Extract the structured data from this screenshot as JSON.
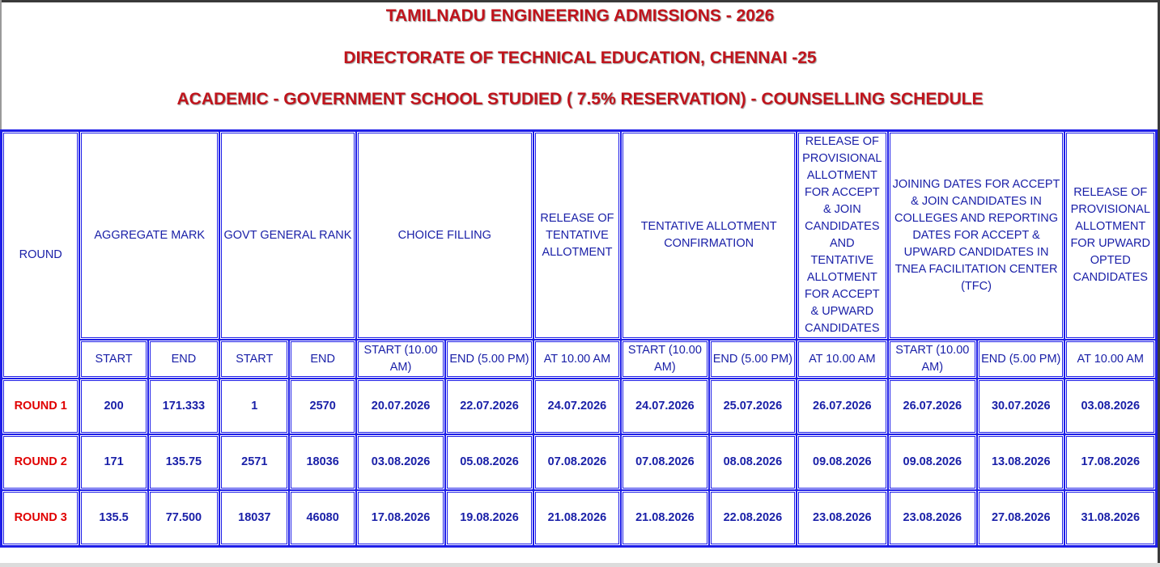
{
  "header": {
    "title_1": "TAMILNADU ENGINEERING ADMISSIONS - 2026",
    "title_2": "DIRECTORATE OF TECHNICAL EDUCATION, CHENNAI -25",
    "title_3": "ACADEMIC - GOVERNMENT SCHOOL STUDIED ( 7.5% RESERVATION) - COUNSELLING SCHEDULE"
  },
  "table": {
    "round_header": "ROUND",
    "groups": {
      "aggregate": "AGGREGATE MARK",
      "rank": "GOVT GENERAL RANK",
      "choice": "CHOICE FILLING",
      "tentative": "RELEASE OF TENTATIVE ALLOTMENT",
      "confirmation": "TENTATIVE ALLOTMENT CONFIRMATION",
      "provisional": "RELEASE OF PROVISIONAL ALLOTMENT FOR ACCEPT & JOIN CANDIDATES AND TENTATIVE ALLOTMENT FOR ACCEPT & UPWARD CANDIDATES",
      "joining": "JOINING DATES FOR ACCEPT & JOIN CANDIDATES IN COLLEGES AND REPORTING DATES FOR ACCEPT & UPWARD CANDIDATES IN TNEA FACILITATION CENTER (TFC)",
      "upward": "RELEASE OF PROVISIONAL ALLOTMENT FOR UPWARD OPTED CANDIDATES"
    },
    "subheaders": {
      "start": "START",
      "end": "END",
      "start_time": "START (10.00 AM)",
      "end_time": "END (5.00 PM)",
      "at_time": "AT 10.00 AM"
    },
    "rows": [
      {
        "round": "ROUND 1",
        "agg_start": "200",
        "agg_end": "171.333",
        "rank_start": "1",
        "rank_end": "2570",
        "choice_start": "20.07.2026",
        "choice_end": "22.07.2026",
        "tentative_at": "24.07.2026",
        "confirm_start": "24.07.2026",
        "confirm_end": "25.07.2026",
        "provisional_at": "26.07.2026",
        "join_start": "26.07.2026",
        "join_end": "30.07.2026",
        "upward_at": "03.08.2026"
      },
      {
        "round": "ROUND 2",
        "agg_start": "171",
        "agg_end": "135.75",
        "rank_start": "2571",
        "rank_end": "18036",
        "choice_start": "03.08.2026",
        "choice_end": "05.08.2026",
        "tentative_at": "07.08.2026",
        "confirm_start": "07.08.2026",
        "confirm_end": "08.08.2026",
        "provisional_at": "09.08.2026",
        "join_start": "09.08.2026",
        "join_end": "13.08.2026",
        "upward_at": "17.08.2026"
      },
      {
        "round": "ROUND 3",
        "agg_start": "135.5",
        "agg_end": "77.500",
        "rank_start": "18037",
        "rank_end": "46080",
        "choice_start": "17.08.2026",
        "choice_end": "19.08.2026",
        "tentative_at": "21.08.2026",
        "confirm_start": "21.08.2026",
        "confirm_end": "22.08.2026",
        "provisional_at": "23.08.2026",
        "join_start": "23.08.2026",
        "join_end": "27.08.2026",
        "upward_at": "31.08.2026"
      }
    ]
  },
  "colors": {
    "title": "#c0141c",
    "border": "#1e1ee8",
    "header_text": "#1a20a8",
    "data_text": "#3e4f1c",
    "round_label": "#e00000"
  }
}
